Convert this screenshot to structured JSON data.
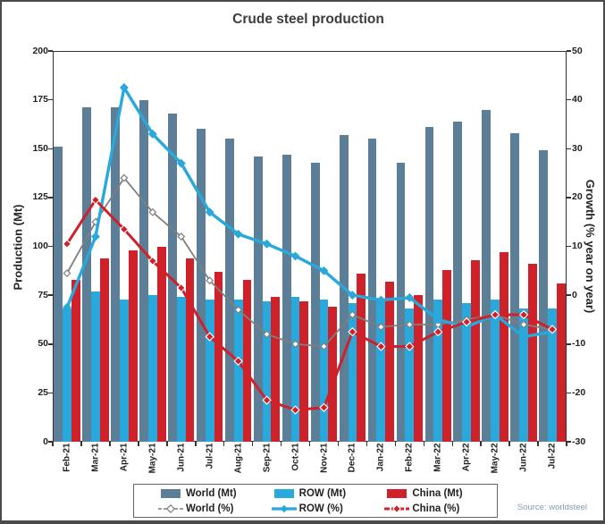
{
  "page": {
    "title": "Crude steel production",
    "source": "Source: worldsteel"
  },
  "chart_data": {
    "type": "combo-bar-line",
    "title": "Crude steel production",
    "categories": [
      "Feb-21",
      "Mar-21",
      "Apr-21",
      "May-21",
      "Jun-21",
      "Jul-21",
      "Aug-21",
      "Sep-21",
      "Oct-21",
      "Nov-21",
      "Dec-21",
      "Jan-22",
      "Feb-22",
      "Mar-22",
      "Apr-22",
      "May-22",
      "Jun-22",
      "Jul-22"
    ],
    "bar_series": [
      {
        "name": "World (Mt)",
        "axis": "left",
        "color": "#5c7e96",
        "values": [
          151,
          171,
          171,
          175,
          168,
          160,
          155,
          146,
          147,
          143,
          157,
          155,
          143,
          161,
          164,
          170,
          158,
          149
        ]
      },
      {
        "name": "ROW (Mt)",
        "axis": "left",
        "color": "#29a8db",
        "values": [
          68,
          77,
          73,
          75,
          74,
          73,
          73,
          72,
          74,
          73,
          71,
          73,
          68,
          73,
          71,
          73,
          68,
          68
        ]
      },
      {
        "name": "China (Mt)",
        "axis": "left",
        "color": "#ce2129",
        "values": [
          83,
          94,
          98,
          100,
          94,
          87,
          83,
          74,
          72,
          69,
          86,
          82,
          75,
          88,
          93,
          97,
          91,
          81
        ]
      }
    ],
    "line_series": [
      {
        "name": "World (%)",
        "axis": "right",
        "color": "#7f7f7f",
        "width": 1.8,
        "marker": "open-diamond",
        "values": [
          4.5,
          15,
          24,
          17,
          12,
          3,
          -3,
          -8,
          -10,
          -10.5,
          -4,
          -6.5,
          -6,
          -6,
          -5,
          -4,
          -6,
          -7
        ]
      },
      {
        "name": "ROW (%)",
        "axis": "right",
        "color": "#29a8db",
        "width": 3.4,
        "marker": "filled-diamond",
        "values": [
          -2.5,
          12,
          42.5,
          33,
          27,
          17,
          12.5,
          10.5,
          8,
          5,
          0,
          -1,
          -0.5,
          -5,
          -6.5,
          -4,
          -8.5,
          -7.5
        ]
      },
      {
        "name": "China (%)",
        "axis": "right",
        "color": "#ce2129",
        "width": 3,
        "marker": "filled-diamond-white-edge",
        "values": [
          10.5,
          19.5,
          13.5,
          7,
          1.5,
          -8.5,
          -13.5,
          -21.5,
          -23.5,
          -23,
          -7.5,
          -10.5,
          -10.5,
          -7.5,
          -5.5,
          -4,
          -4,
          -7
        ]
      }
    ],
    "left_axis": {
      "label": "Production (Mt)",
      "min": 0,
      "max": 200,
      "step": 25,
      "ticks": [
        0,
        25,
        50,
        75,
        100,
        125,
        150,
        175,
        200
      ]
    },
    "right_axis": {
      "label": "Growth (% year on year)",
      "min": -30,
      "max": 50,
      "step": 10,
      "ticks": [
        -30,
        -20,
        -10,
        0,
        10,
        20,
        30,
        40,
        50
      ]
    },
    "grid": false,
    "legend_position": "bottom"
  },
  "legend": {
    "rows": [
      [
        {
          "type": "bar",
          "label": "World (Mt)",
          "color": "#5c7e96"
        },
        {
          "type": "bar",
          "label": "ROW (Mt)",
          "color": "#29a8db"
        },
        {
          "type": "bar",
          "label": "China (Mt)",
          "color": "#ce2129"
        }
      ],
      [
        {
          "type": "line",
          "label": "World (%)",
          "color": "#7f7f7f",
          "width": 1.6,
          "dash": "4 2",
          "marker": "open-diamond"
        },
        {
          "type": "line",
          "label": "ROW (%)",
          "color": "#29a8db",
          "width": 3.2,
          "dash": "",
          "marker": "filled-diamond"
        },
        {
          "type": "line",
          "label": "China (%)",
          "color": "#ce2129",
          "width": 3,
          "dash": "6 2",
          "marker": "filled-diamond-white-edge"
        }
      ]
    ]
  }
}
